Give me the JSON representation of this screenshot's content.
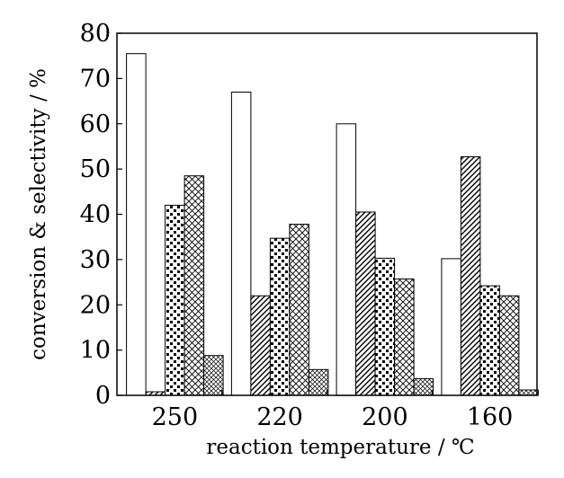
{
  "chart_data": {
    "type": "bar",
    "title": "",
    "xlabel": "reaction temperature / ℃",
    "ylabel": "conversion & selectivity / %",
    "categories": [
      "250",
      "220",
      "200",
      "160"
    ],
    "ylim": [
      0,
      80
    ],
    "yticks": [
      0,
      10,
      20,
      30,
      40,
      50,
      60,
      70,
      80
    ],
    "grid": false,
    "legend": "none",
    "series": [
      {
        "pattern": "blank",
        "values": [
          75.5,
          67.0,
          60.0,
          30.2
        ]
      },
      {
        "pattern": "diagonal-hatch",
        "values": [
          0.8,
          22.0,
          40.5,
          52.7
        ]
      },
      {
        "pattern": "checker-dots",
        "values": [
          42.0,
          34.7,
          30.3,
          24.2
        ]
      },
      {
        "pattern": "crosshatch",
        "values": [
          48.5,
          37.8,
          25.7,
          22.0
        ]
      },
      {
        "pattern": "fine-crosshatch",
        "values": [
          8.8,
          5.7,
          3.7,
          1.2
        ]
      }
    ]
  }
}
